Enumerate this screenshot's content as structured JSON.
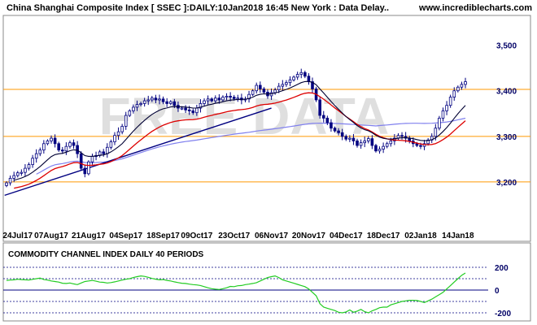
{
  "header": {
    "title": "China Shanghai Composite Index [ SSEC ]:DAILY:10Jan2018 16:45 New York : Data Delay..",
    "site": "www.incrediblecharts.com"
  },
  "watermark": "FREE DATA",
  "colors": {
    "background": "#ffffff",
    "candle": "#000080",
    "ema_short": "#000033",
    "ema_mid": "#dd0000",
    "ma_long": "#8080ee",
    "trendline": "#000080",
    "hlines": "#ff9900",
    "cci": "#22cc22",
    "cci_guides": "#000080",
    "frame": "#888888"
  },
  "chart_data": [
    {
      "type": "candlestick",
      "title": "China Shanghai Composite Index [ SSEC ]:DAILY:10Jan2018 16:45 New York : Data Delay..",
      "xlabel": "",
      "ylabel": "",
      "ylim": [
        3100,
        3560
      ],
      "yticks": [
        3200,
        3300,
        3400,
        3500
      ],
      "ytick_labels": [
        "3,200",
        "3,300",
        "3,400",
        "3,500"
      ],
      "xticks": [
        "24Jul17",
        "07Aug17",
        "21Aug17",
        "04Sep17",
        "18Sep17",
        "09Oct17",
        "23Oct17",
        "06Nov17",
        "20Nov17",
        "04Dec17",
        "18Dec17",
        "02Jan18",
        "14Jan18"
      ],
      "xtick_index": [
        3,
        12,
        22,
        32,
        42,
        51,
        61,
        71,
        81,
        91,
        101,
        111,
        121
      ],
      "x_count": 124,
      "horizontal_lines": [
        3200,
        3300,
        3403
      ],
      "trendline": {
        "from": [
          0,
          3172
        ],
        "to": [
          71,
          3362
        ]
      },
      "close": [
        3198,
        3208,
        3214,
        3220,
        3221,
        3230,
        3238,
        3252,
        3262,
        3270,
        3284,
        3290,
        3296,
        3284,
        3270,
        3268,
        3278,
        3286,
        3280,
        3262,
        3230,
        3218,
        3244,
        3256,
        3258,
        3266,
        3262,
        3276,
        3288,
        3302,
        3310,
        3322,
        3346,
        3356,
        3364,
        3370,
        3372,
        3378,
        3380,
        3384,
        3380,
        3382,
        3376,
        3372,
        3376,
        3368,
        3362,
        3362,
        3358,
        3356,
        3352,
        3362,
        3372,
        3378,
        3382,
        3378,
        3384,
        3380,
        3386,
        3388,
        3386,
        3383,
        3384,
        3380,
        3382,
        3392,
        3400,
        3412,
        3404,
        3397,
        3389,
        3396,
        3402,
        3410,
        3414,
        3418,
        3424,
        3430,
        3436,
        3440,
        3432,
        3420,
        3404,
        3380,
        3346,
        3340,
        3330,
        3318,
        3312,
        3308,
        3300,
        3294,
        3296,
        3290,
        3280,
        3286,
        3290,
        3295,
        3280,
        3268,
        3272,
        3278,
        3284,
        3290,
        3296,
        3302,
        3300,
        3296,
        3290,
        3284,
        3280,
        3278,
        3284,
        3292,
        3300,
        3318,
        3340,
        3356,
        3368,
        3386,
        3400,
        3408,
        3414,
        3420
      ]
    },
    {
      "type": "line",
      "title": "COMMODITY CHANNEL INDEX DAILY 40 PERIODS",
      "xlabel": "",
      "ylabel": "",
      "ylim": [
        -250,
        250
      ],
      "yticks": [
        200,
        0,
        -200
      ],
      "ytick_labels": [
        "200",
        "0",
        "-200"
      ],
      "guide_levels": [
        200,
        100,
        -100,
        -200
      ],
      "series": [
        {
          "values": [
            85,
            88,
            90,
            95,
            92,
            90,
            88,
            94,
            100,
            105,
            92,
            88,
            80,
            75,
            70,
            60,
            58,
            62,
            54,
            48,
            62,
            75,
            80,
            85,
            78,
            70,
            68,
            62,
            66,
            72,
            80,
            88,
            95,
            100,
            110,
            118,
            124,
            120,
            112,
            102,
            96,
            90,
            92,
            85,
            80,
            72,
            66,
            60,
            58,
            52,
            48,
            45,
            40,
            30,
            20,
            12,
            8,
            5,
            12,
            20,
            32,
            30,
            38,
            40,
            48,
            52,
            58,
            65,
            80,
            95,
            110,
            118,
            124,
            110,
            90,
            80,
            70,
            60,
            50,
            40,
            30,
            10,
            -20,
            -50,
            -120,
            -150,
            -160,
            -170,
            -180,
            -195,
            -200,
            -192,
            -175,
            -195,
            -185,
            -170,
            -190,
            -200,
            -182,
            -170,
            -155,
            -150,
            -150,
            -130,
            -120,
            -110,
            -100,
            -95,
            -90,
            -90,
            -92,
            -100,
            -110,
            -95,
            -80,
            -60,
            -40,
            -20,
            10,
            40,
            70,
            100,
            130,
            150
          ]
        }
      ]
    }
  ]
}
